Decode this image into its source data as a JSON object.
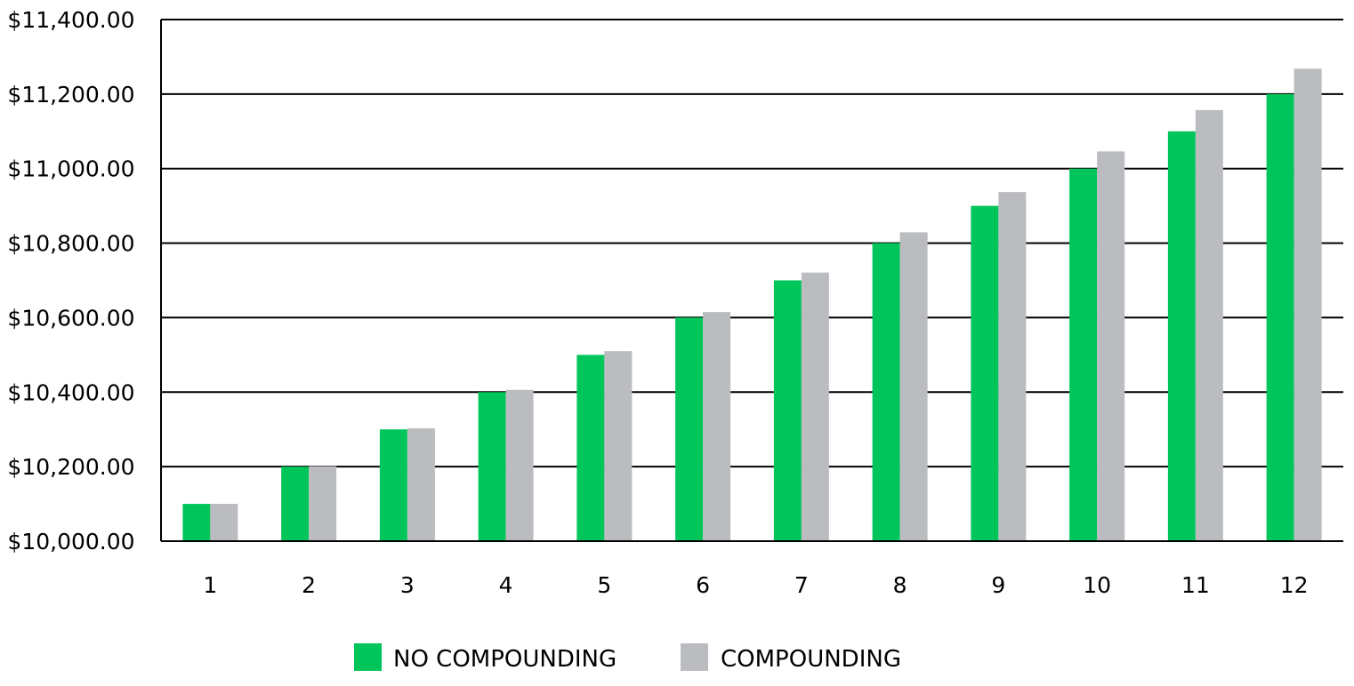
{
  "chart_data": {
    "type": "bar",
    "title": "",
    "xlabel": "",
    "ylabel": "",
    "categories": [
      "1",
      "2",
      "3",
      "4",
      "5",
      "6",
      "7",
      "8",
      "9",
      "10",
      "11",
      "12"
    ],
    "series": [
      {
        "name": "NO COMPOUNDING",
        "color": "#00c55a",
        "values": [
          10100,
          10200,
          10300,
          10400,
          10500,
          10600,
          10700,
          10800,
          10900,
          11000,
          11100,
          11200
        ]
      },
      {
        "name": "COMPOUNDING",
        "color": "#bbbcbf",
        "values": [
          10100,
          10201,
          10303,
          10406,
          10510,
          10615,
          10721,
          10829,
          10937,
          11046,
          11157,
          11268
        ]
      }
    ],
    "ylim": [
      10000,
      11400
    ],
    "yticks": [
      10000,
      10200,
      10400,
      10600,
      10800,
      11000,
      11200,
      11400
    ],
    "ytick_labels": [
      "$10,000.00",
      "$10,200.00",
      "$10,400.00",
      "$10,600.00",
      "$10,800.00",
      "$11,000.00",
      "$11,200.00",
      "$11,400.00"
    ],
    "grid": true,
    "legend_position": "bottom-center"
  }
}
